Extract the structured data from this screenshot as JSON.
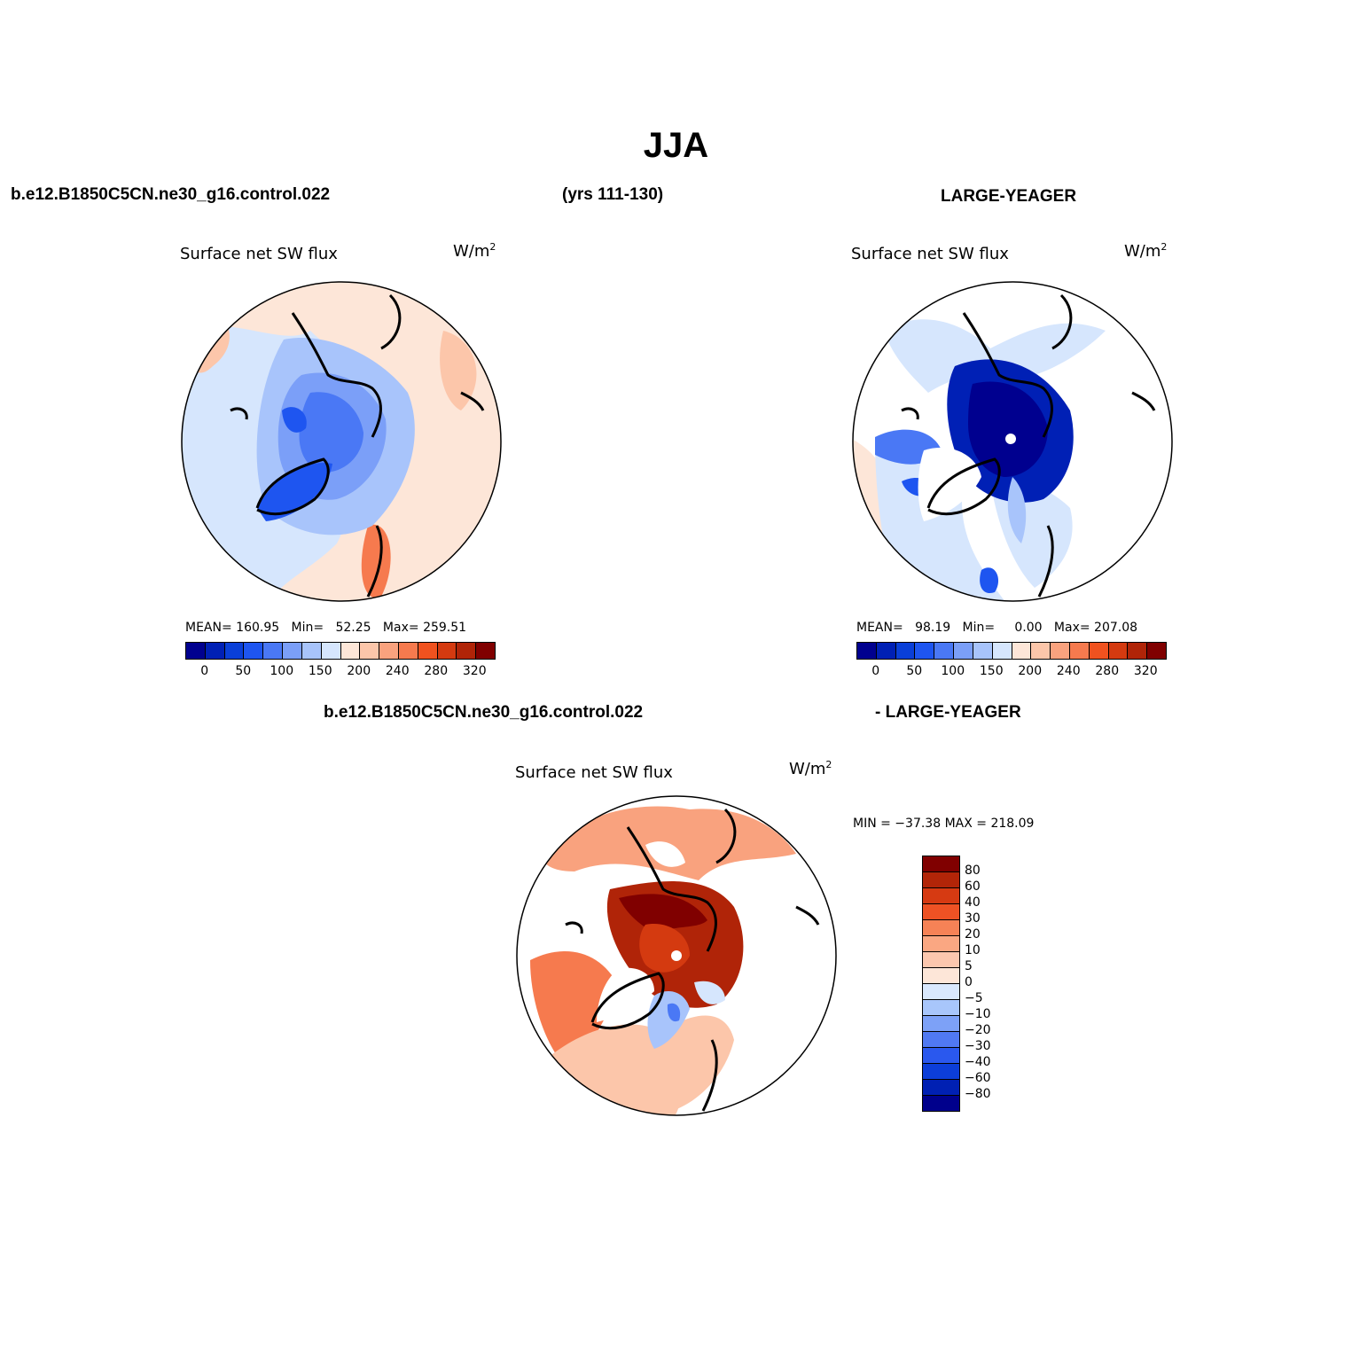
{
  "title": "JJA",
  "header": {
    "case_name": "b.e12.B1850C5CN.ne30_g16.control.022",
    "years": "(yrs 111-130)",
    "ref_name": "LARGE-YEAGER"
  },
  "diff_header": {
    "case_name": "b.e12.B1850C5CN.ne30_g16.control.022",
    "ref_name": "- LARGE-YEAGER"
  },
  "panels": [
    {
      "field_label": "Surface net SW flux",
      "units_base": "W/m",
      "units_sup": "2",
      "stats": {
        "mean_label": "MEAN=",
        "mean": "160.95",
        "min_label": "Min=",
        "min": "52.25",
        "max_label": "Max=",
        "max": "259.51"
      }
    },
    {
      "field_label": "Surface net SW flux",
      "units_base": "W/m",
      "units_sup": "2",
      "stats": {
        "mean_label": "MEAN=",
        "mean": "98.19",
        "min_label": "Min=",
        "min": "0.00",
        "max_label": "Max=",
        "max": "207.08"
      }
    }
  ],
  "diff_panel": {
    "field_label": "Surface net SW flux",
    "units_base": "W/m",
    "units_sup": "2",
    "minmax": "MIN = −37.38 MAX = 218.09"
  },
  "colorbar_abs": {
    "colors": [
      "#00008f",
      "#0020b5",
      "#0a3fd8",
      "#1e55f0",
      "#4a78f5",
      "#7b9ff8",
      "#a8c4fb",
      "#d6e6fd",
      "#fde6d8",
      "#fcc6aa",
      "#f9a27e",
      "#f67a4e",
      "#f0521f",
      "#d43a10",
      "#b02408",
      "#800000"
    ],
    "labels": [
      "0",
      "50",
      "100",
      "150",
      "200",
      "240",
      "280",
      "320"
    ]
  },
  "colorbar_diff": {
    "colors": [
      "#800000",
      "#b22508",
      "#d63a12",
      "#ee5224",
      "#f68256",
      "#faa782",
      "#fcc7ae",
      "#fde6d8",
      "#d9e8fd",
      "#a8c6fb",
      "#7da1f7",
      "#5079f3",
      "#2a58ee",
      "#0c3ed9",
      "#0020b3",
      "#00008c"
    ],
    "labels": [
      "80",
      "60",
      "40",
      "30",
      "20",
      "10",
      "5",
      "0",
      "−5",
      "−10",
      "−20",
      "−30",
      "−40",
      "−60",
      "−80"
    ]
  },
  "legend_colors": {
    "land_outline": "#000000",
    "pole_marker": "#ffffff",
    "missing": "#ffffff"
  }
}
